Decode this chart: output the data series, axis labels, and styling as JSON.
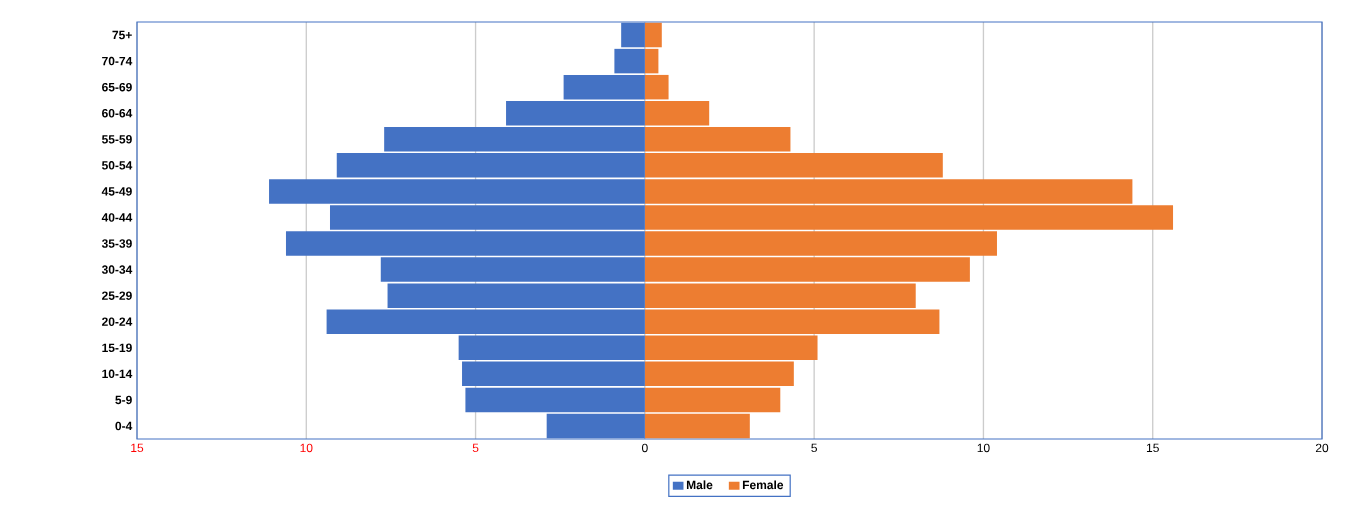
{
  "chart_data": {
    "type": "bar",
    "orientation": "horizontal",
    "categories": [
      "75+",
      "70-74",
      "65-69",
      "60-64",
      "55-59",
      "50-54",
      "45-49",
      "40-44",
      "35-39",
      "30-34",
      "25-29",
      "20-24",
      "15-19",
      "10-14",
      "5-9",
      "0-4"
    ],
    "series": [
      {
        "name": "Male",
        "color": "#4472c4",
        "values": [
          -0.7,
          -0.9,
          -2.4,
          -4.1,
          -7.7,
          -9.1,
          -11.1,
          -9.3,
          -10.6,
          -7.8,
          -7.6,
          -9.4,
          -5.5,
          -5.4,
          -5.3,
          -2.9
        ]
      },
      {
        "name": "Female",
        "color": "#ed7d31",
        "values": [
          0.5,
          0.4,
          0.7,
          1.9,
          4.3,
          8.8,
          14.4,
          15.6,
          10.4,
          9.6,
          8.0,
          8.7,
          5.1,
          4.4,
          4.0,
          3.1
        ]
      }
    ],
    "xlim": [
      -15,
      20
    ],
    "xticks": [
      {
        "value": -15,
        "label": "15"
      },
      {
        "value": -10,
        "label": "10"
      },
      {
        "value": -5,
        "label": "5"
      },
      0,
      5,
      10,
      15,
      20
    ],
    "grid": "x",
    "legend": "bottom",
    "stacked": true
  }
}
